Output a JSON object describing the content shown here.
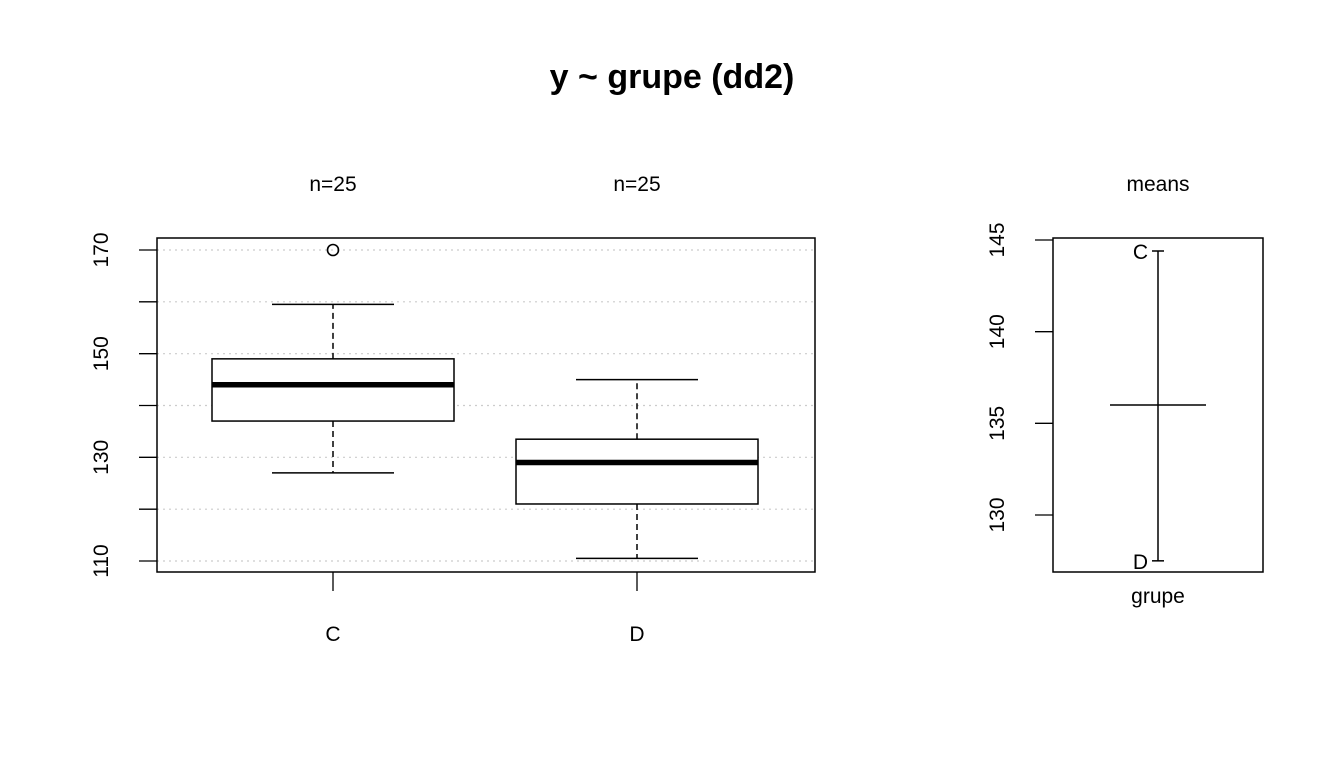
{
  "title": "y ~ grupe (dd2)",
  "chart_data": [
    {
      "type": "box",
      "categories": [
        "C",
        "D"
      ],
      "counts_labels": [
        "n=25",
        "n=25"
      ],
      "boxes": [
        {
          "name": "C",
          "lower_whisker": 127,
          "q1": 137,
          "median": 144,
          "q3": 149,
          "upper_whisker": 159.5,
          "outliers": [
            170
          ]
        },
        {
          "name": "D",
          "lower_whisker": 110.5,
          "q1": 121,
          "median": 129,
          "q3": 133.5,
          "upper_whisker": 145,
          "outliers": []
        }
      ],
      "ylim": [
        108,
        172
      ],
      "yticks": [
        110,
        120,
        130,
        140,
        150,
        160,
        170
      ],
      "ytick_labels": [
        "110",
        "130",
        "150",
        "170"
      ],
      "grid": "horizontal dotted"
    },
    {
      "type": "means",
      "title": "means",
      "xlabel": "grupe",
      "ylim": [
        126.9,
        145.2
      ],
      "yticks": [
        130,
        135,
        140,
        145
      ],
      "ytick_labels": [
        "130",
        "135",
        "140",
        "145"
      ],
      "means": [
        {
          "name": "C",
          "value": 144.4
        },
        {
          "name": "D",
          "value": 127.5
        }
      ],
      "grand_mean": 136.0
    }
  ]
}
